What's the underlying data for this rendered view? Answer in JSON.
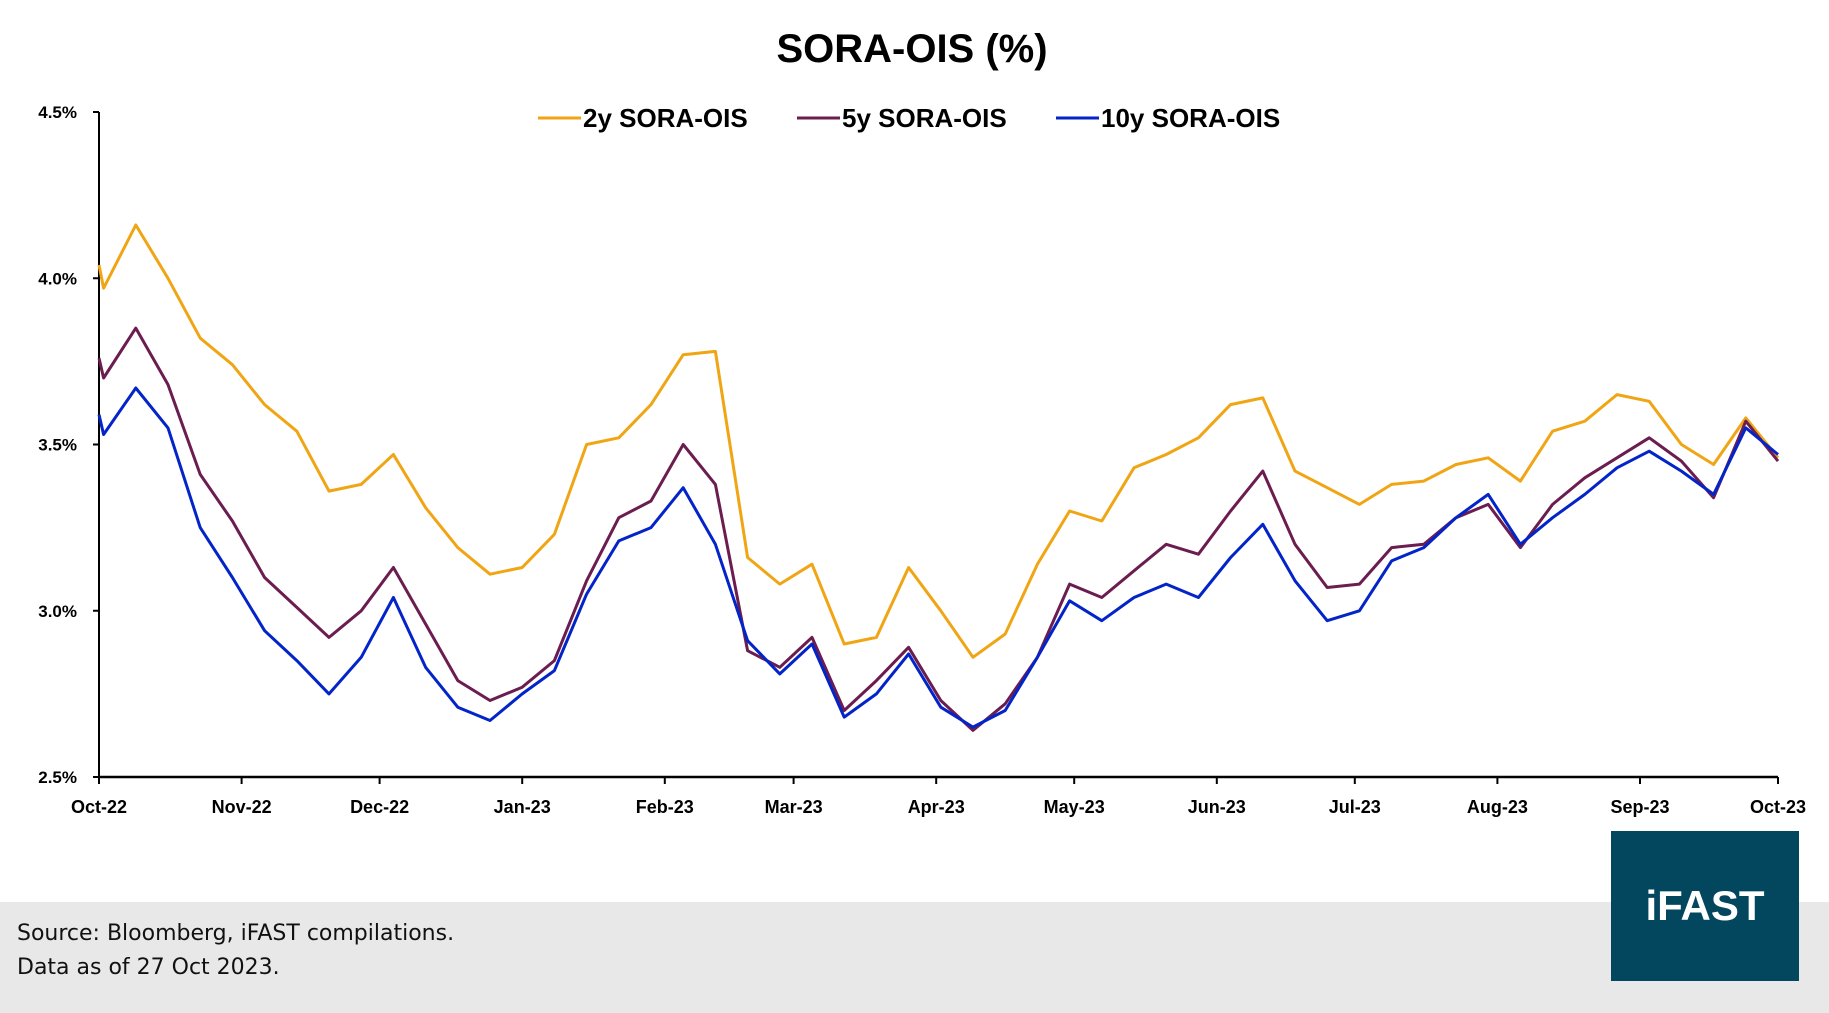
{
  "chart_data": {
    "type": "line",
    "title": "SORA-OIS (%)",
    "xlabel": "",
    "ylabel": "",
    "ylim": [
      2.5,
      4.5
    ],
    "yticks": [
      "2.5%",
      "3.0%",
      "3.5%",
      "4.0%",
      "4.5%"
    ],
    "ytick_values": [
      2.5,
      3.0,
      3.5,
      4.0,
      4.5
    ],
    "xlim": [
      "2022-10-27",
      "2023-10-27"
    ],
    "xticks": [
      {
        "label": "Oct-22",
        "date": "2022-10-27"
      },
      {
        "label": "Nov-22",
        "date": "2022-11-27"
      },
      {
        "label": "Dec-22",
        "date": "2022-12-27"
      },
      {
        "label": "Jan-23",
        "date": "2023-01-27"
      },
      {
        "label": "Feb-23",
        "date": "2023-02-27"
      },
      {
        "label": "Mar-23",
        "date": "2023-03-27"
      },
      {
        "label": "Apr-23",
        "date": "2023-04-27"
      },
      {
        "label": "May-23",
        "date": "2023-05-27"
      },
      {
        "label": "Jun-23",
        "date": "2023-06-27"
      },
      {
        "label": "Jul-23",
        "date": "2023-07-27"
      },
      {
        "label": "Aug-23",
        "date": "2023-08-27"
      },
      {
        "label": "Sep-23",
        "date": "2023-09-27"
      },
      {
        "label": "Oct-23",
        "date": "2023-10-27"
      }
    ],
    "grid": false,
    "legend_position": "top-center",
    "x": [
      "2022-10-27",
      "2022-10-28",
      "2022-11-04",
      "2022-11-11",
      "2022-11-18",
      "2022-11-25",
      "2022-12-02",
      "2022-12-09",
      "2022-12-16",
      "2022-12-23",
      "2022-12-30",
      "2023-01-06",
      "2023-01-13",
      "2023-01-20",
      "2023-01-27",
      "2023-02-03",
      "2023-02-10",
      "2023-02-17",
      "2023-02-24",
      "2023-03-03",
      "2023-03-10",
      "2023-03-17",
      "2023-03-24",
      "2023-03-31",
      "2023-04-07",
      "2023-04-14",
      "2023-04-21",
      "2023-04-28",
      "2023-05-05",
      "2023-05-12",
      "2023-05-19",
      "2023-05-26",
      "2023-06-02",
      "2023-06-09",
      "2023-06-16",
      "2023-06-23",
      "2023-06-30",
      "2023-07-07",
      "2023-07-14",
      "2023-07-21",
      "2023-07-28",
      "2023-08-04",
      "2023-08-11",
      "2023-08-18",
      "2023-08-25",
      "2023-09-01",
      "2023-09-08",
      "2023-09-15",
      "2023-09-22",
      "2023-09-29",
      "2023-10-06",
      "2023-10-13",
      "2023-10-20",
      "2023-10-27"
    ],
    "series": [
      {
        "name": "2y SORA-OIS",
        "color": "#F0A514",
        "values": [
          4.04,
          3.97,
          4.16,
          4.0,
          3.82,
          3.74,
          3.62,
          3.54,
          3.36,
          3.38,
          3.47,
          3.31,
          3.19,
          3.11,
          3.13,
          3.23,
          3.5,
          3.52,
          3.62,
          3.77,
          3.78,
          3.16,
          3.08,
          3.14,
          2.9,
          2.92,
          3.13,
          3.0,
          2.86,
          2.93,
          3.14,
          3.3,
          3.27,
          3.43,
          3.47,
          3.52,
          3.62,
          3.64,
          3.42,
          3.37,
          3.32,
          3.38,
          3.39,
          3.44,
          3.46,
          3.39,
          3.54,
          3.57,
          3.65,
          3.63,
          3.5,
          3.44,
          3.58,
          3.46
        ]
      },
      {
        "name": "5y SORA-OIS",
        "color": "#6B1D50",
        "values": [
          3.76,
          3.7,
          3.85,
          3.68,
          3.41,
          3.27,
          3.1,
          3.01,
          2.92,
          3.0,
          3.13,
          2.96,
          2.79,
          2.73,
          2.77,
          2.85,
          3.09,
          3.28,
          3.33,
          3.5,
          3.38,
          2.88,
          2.83,
          2.92,
          2.7,
          2.79,
          2.89,
          2.73,
          2.64,
          2.72,
          2.86,
          3.08,
          3.04,
          3.12,
          3.2,
          3.17,
          3.3,
          3.42,
          3.2,
          3.07,
          3.08,
          3.19,
          3.2,
          3.28,
          3.32,
          3.19,
          3.32,
          3.4,
          3.46,
          3.52,
          3.45,
          3.34,
          3.57,
          3.45
        ]
      },
      {
        "name": "10y SORA-OIS",
        "color": "#0324C8",
        "values": [
          3.59,
          3.53,
          3.67,
          3.55,
          3.25,
          3.1,
          2.94,
          2.85,
          2.75,
          2.86,
          3.04,
          2.83,
          2.71,
          2.67,
          2.75,
          2.82,
          3.05,
          3.21,
          3.25,
          3.37,
          3.2,
          2.91,
          2.81,
          2.9,
          2.68,
          2.75,
          2.87,
          2.71,
          2.65,
          2.7,
          2.86,
          3.03,
          2.97,
          3.04,
          3.08,
          3.04,
          3.16,
          3.26,
          3.09,
          2.97,
          3.0,
          3.15,
          3.19,
          3.28,
          3.35,
          3.2,
          3.28,
          3.35,
          3.43,
          3.48,
          3.42,
          3.35,
          3.55,
          3.47
        ]
      }
    ]
  },
  "footer": {
    "source": "Source:  Bloomberg, iFAST compilations.",
    "data_as_of": "Data as of 27 Oct 2023.",
    "background": "#e8e8e8"
  },
  "logo": {
    "text": "iFAST",
    "color": "#02475e"
  }
}
